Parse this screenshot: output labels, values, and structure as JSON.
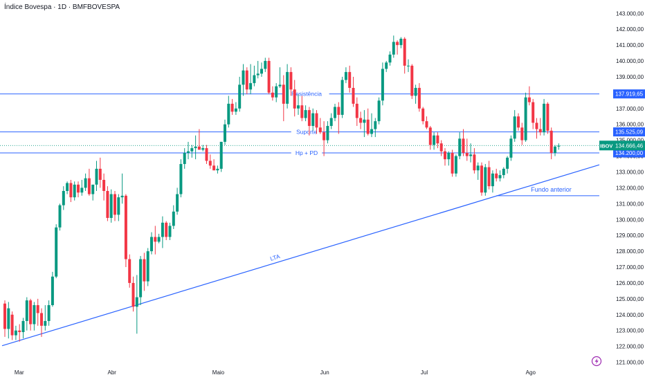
{
  "header": {
    "title": "Índice Bovespa · 1D · BMFBOVESPA"
  },
  "colors": {
    "up": "#089981",
    "down": "#f23645",
    "levels": "#2962ff",
    "axis_text": "#131722",
    "last_price_bg": "#089981",
    "level_label_bg": "#2962ff"
  },
  "chart_data": {
    "type": "candlestick",
    "y_axis": {
      "position": "right",
      "ylim": [
        120500,
        143500
      ],
      "ticks": [
        "143.000,00",
        "142.000,00",
        "141.000,00",
        "140.000,00",
        "139.000,00",
        "138.000,00",
        "137.000,00",
        "136.000,00",
        "135.000,00",
        "134.000,00",
        "133.000,00",
        "132.000,00",
        "131.000,00",
        "130.000,00",
        "129.000,00",
        "128.000,00",
        "127.000,00",
        "126.000,00",
        "125.000,00",
        "124.000,00",
        "123.000,00",
        "122.000,00",
        "121.000,00"
      ]
    },
    "x_axis": {
      "months": [
        {
          "label": "Mar",
          "at": "2025-03-05"
        },
        {
          "label": "Abr",
          "at": "2025-04-01"
        },
        {
          "label": "Maio",
          "at": "2025-05-02"
        },
        {
          "label": "Jun",
          "at": "2025-06-02"
        },
        {
          "label": "Jul",
          "at": "2025-07-01"
        },
        {
          "label": "Ago",
          "at": "2025-08-01"
        }
      ]
    },
    "candles": [
      [
        124700,
        124900,
        122600,
        123100
      ],
      [
        123100,
        124800,
        122500,
        124400
      ],
      [
        124000,
        124200,
        122400,
        122700
      ],
      [
        122700,
        123300,
        122400,
        123000
      ],
      [
        123000,
        123400,
        122300,
        122900
      ],
      [
        122900,
        123800,
        122500,
        123600
      ],
      [
        123600,
        125100,
        123000,
        124900
      ],
      [
        124900,
        125000,
        123000,
        123400
      ],
      [
        123400,
        124800,
        123000,
        124600
      ],
      [
        124600,
        125000,
        123300,
        124100
      ],
      [
        124100,
        124400,
        122600,
        123300
      ],
      [
        123300,
        124600,
        123000,
        123600
      ],
      [
        123600,
        124900,
        123300,
        124600
      ],
      [
        124600,
        126700,
        124500,
        126400
      ],
      [
        126400,
        129700,
        126300,
        129500
      ],
      [
        129500,
        131000,
        129300,
        130900
      ],
      [
        130900,
        132100,
        130600,
        131800
      ],
      [
        131800,
        132400,
        131600,
        132300
      ],
      [
        132300,
        132500,
        131100,
        131400
      ],
      [
        131400,
        132400,
        131200,
        132200
      ],
      [
        132200,
        132400,
        131400,
        131700
      ],
      [
        131700,
        132500,
        131500,
        132000
      ],
      [
        132000,
        132900,
        131800,
        132600
      ],
      [
        132600,
        133200,
        131500,
        131600
      ],
      [
        131600,
        132100,
        131200,
        132200
      ],
      [
        132200,
        133700,
        131800,
        133200
      ],
      [
        133200,
        133900,
        132000,
        132500
      ],
      [
        132500,
        132900,
        131200,
        131800
      ],
      [
        131800,
        132100,
        129900,
        130100
      ],
      [
        130100,
        131900,
        129800,
        131600
      ],
      [
        131600,
        131800,
        129900,
        130300
      ],
      [
        130300,
        131600,
        129900,
        131400
      ],
      [
        131400,
        132900,
        131000,
        131500
      ],
      [
        131500,
        131600,
        127000,
        127500
      ],
      [
        127500,
        127800,
        125700,
        126000
      ],
      [
        126000,
        126400,
        124200,
        124500
      ],
      [
        124500,
        126500,
        122800,
        125100
      ],
      [
        125100,
        127700,
        124600,
        127500
      ],
      [
        127500,
        127900,
        125500,
        126100
      ],
      [
        126100,
        128200,
        125800,
        128000
      ],
      [
        128000,
        129200,
        127800,
        128900
      ],
      [
        128900,
        129600,
        127800,
        128600
      ],
      [
        128600,
        129100,
        128500,
        128900
      ],
      [
        128900,
        130200,
        128200,
        129800
      ],
      [
        129800,
        129900,
        128700,
        128900
      ],
      [
        128900,
        129800,
        128700,
        129600
      ],
      [
        129600,
        130900,
        129400,
        130500
      ],
      [
        130500,
        132000,
        130300,
        131600
      ],
      [
        131600,
        133800,
        131400,
        133500
      ],
      [
        133500,
        134500,
        133200,
        134200
      ],
      [
        134200,
        134900,
        133800,
        134300
      ],
      [
        134300,
        134700,
        133900,
        134500
      ],
      [
        134500,
        135300,
        133800,
        134600
      ],
      [
        134600,
        135700,
        134400,
        134400
      ],
      [
        134400,
        134700,
        134300,
        134500
      ],
      [
        134500,
        134700,
        133500,
        133700
      ],
      [
        133700,
        134100,
        133200,
        133400
      ],
      [
        133400,
        133800,
        133100,
        133100
      ],
      [
        133100,
        133400,
        132900,
        133200
      ],
      [
        133200,
        134900,
        133000,
        134900
      ],
      [
        134900,
        136300,
        134700,
        136000
      ],
      [
        136000,
        137800,
        135800,
        137300
      ],
      [
        137300,
        137600,
        136600,
        136800
      ],
      [
        136800,
        137400,
        136600,
        137000
      ],
      [
        137000,
        139000,
        136800,
        138500
      ],
      [
        138500,
        139800,
        137800,
        139400
      ],
      [
        139400,
        139600,
        137900,
        138200
      ],
      [
        138200,
        139800,
        137900,
        138600
      ],
      [
        138600,
        139700,
        138400,
        139100
      ],
      [
        139100,
        140000,
        138900,
        139200
      ],
      [
        139200,
        139900,
        139000,
        139500
      ],
      [
        139500,
        140200,
        139300,
        140000
      ],
      [
        140000,
        140200,
        137900,
        138000
      ],
      [
        138000,
        138400,
        137500,
        137700
      ],
      [
        137700,
        138600,
        137400,
        138400
      ],
      [
        138400,
        139600,
        138300,
        138500
      ],
      [
        138500,
        139100,
        136200,
        137300
      ],
      [
        137300,
        139800,
        137000,
        139300
      ],
      [
        139300,
        139600,
        137800,
        138200
      ],
      [
        138200,
        138800,
        136500,
        137000
      ],
      [
        137000,
        137900,
        136600,
        137200
      ],
      [
        137200,
        137800,
        136200,
        136400
      ],
      [
        136400,
        137200,
        136200,
        136900
      ],
      [
        136900,
        137100,
        135300,
        135900
      ],
      [
        135900,
        137000,
        135600,
        136700
      ],
      [
        136700,
        136900,
        135400,
        135800
      ],
      [
        135800,
        136400,
        135400,
        135500
      ],
      [
        135500,
        136200,
        134000,
        135000
      ],
      [
        135000,
        136200,
        134800,
        135900
      ],
      [
        135900,
        136700,
        135700,
        136400
      ],
      [
        136400,
        137300,
        136200,
        137100
      ],
      [
        137100,
        137400,
        135400,
        136600
      ],
      [
        136600,
        139000,
        136400,
        138800
      ],
      [
        138800,
        139600,
        138600,
        139300
      ],
      [
        139300,
        139700,
        138000,
        138300
      ],
      [
        138300,
        139000,
        137100,
        137300
      ],
      [
        137300,
        137700,
        135900,
        136400
      ],
      [
        136400,
        136800,
        135700,
        136100
      ],
      [
        136100,
        136900,
        135200,
        136300
      ],
      [
        136300,
        137000,
        135300,
        135400
      ],
      [
        135400,
        136700,
        135200,
        135700
      ],
      [
        135700,
        136400,
        135200,
        136200
      ],
      [
        136200,
        137700,
        136000,
        137500
      ],
      [
        137500,
        139900,
        137200,
        139500
      ],
      [
        139500,
        140000,
        139300,
        139900
      ],
      [
        139900,
        140600,
        139700,
        140400
      ],
      [
        140400,
        141600,
        140200,
        141200
      ],
      [
        141200,
        141300,
        140400,
        141000
      ],
      [
        141000,
        141500,
        140800,
        141400
      ],
      [
        141400,
        141500,
        139200,
        139700
      ],
      [
        139700,
        140100,
        139300,
        139700
      ],
      [
        139700,
        139800,
        137600,
        137800
      ],
      [
        137800,
        138500,
        137300,
        138300
      ],
      [
        138300,
        138600,
        136800,
        137000
      ],
      [
        137000,
        137100,
        136000,
        136200
      ],
      [
        136200,
        136500,
        135700,
        135800
      ],
      [
        135800,
        135900,
        134400,
        134700
      ],
      [
        134700,
        135500,
        134400,
        135300
      ],
      [
        135300,
        135500,
        134500,
        134800
      ],
      [
        134800,
        135000,
        134000,
        134300
      ],
      [
        134300,
        134500,
        133400,
        133800
      ],
      [
        133800,
        134300,
        133400,
        134200
      ],
      [
        134200,
        134400,
        132700,
        132900
      ],
      [
        132900,
        134100,
        132700,
        134000
      ],
      [
        134000,
        135500,
        133800,
        135100
      ],
      [
        135100,
        135700,
        134000,
        134200
      ],
      [
        134200,
        135100,
        133700,
        134000
      ],
      [
        134000,
        134800,
        133600,
        134100
      ],
      [
        134100,
        134500,
        132900,
        133100
      ],
      [
        133100,
        133600,
        132500,
        133400
      ],
      [
        133400,
        133600,
        131500,
        131700
      ],
      [
        131700,
        133500,
        131500,
        133300
      ],
      [
        133300,
        133700,
        131900,
        132100
      ],
      [
        132100,
        133100,
        131700,
        132900
      ],
      [
        132900,
        133200,
        132400,
        132600
      ],
      [
        132600,
        133100,
        132400,
        132800
      ],
      [
        132800,
        133300,
        132600,
        133200
      ],
      [
        133200,
        134000,
        132900,
        133900
      ],
      [
        133900,
        135300,
        133700,
        135100
      ],
      [
        135100,
        136900,
        134900,
        136500
      ],
      [
        136500,
        136700,
        135600,
        135800
      ],
      [
        135800,
        136100,
        134700,
        135000
      ],
      [
        135000,
        138000,
        134900,
        137700
      ],
      [
        137700,
        138400,
        137200,
        137400
      ],
      [
        137400,
        137600,
        135700,
        136100
      ],
      [
        136100,
        136400,
        135100,
        135700
      ],
      [
        135700,
        136400,
        135300,
        135500
      ],
      [
        135500,
        137600,
        135300,
        137300
      ],
      [
        137300,
        137400,
        135400,
        135600
      ],
      [
        135600,
        135800,
        133800,
        134200
      ],
      [
        134200,
        134700,
        134000,
        134600
      ],
      [
        134600,
        134800,
        134400,
        134660
      ]
    ],
    "horizontal_levels": [
      {
        "label": "Resistência",
        "value": 137919.65,
        "price_label": "137.919,65"
      },
      {
        "label": "Suporte",
        "value": 135525.09,
        "price_label": "135.525,09"
      },
      {
        "label": "Hp + PD",
        "value": 134200,
        "price_label": "134.200,00"
      }
    ],
    "last_price": {
      "symbol": "IBOV",
      "price_label": "134.666,46",
      "value": 134666.46
    },
    "trendline": {
      "label": "LTA",
      "from": {
        "date": "2025-02-28",
        "value": 122040
      },
      "to": {
        "date": "2025-08-21",
        "value": 133450
      }
    },
    "annotation": {
      "label": "Fundo anterior",
      "value": 131500,
      "from_date": "2025-07-22",
      "to_date": "2025-08-21"
    }
  }
}
